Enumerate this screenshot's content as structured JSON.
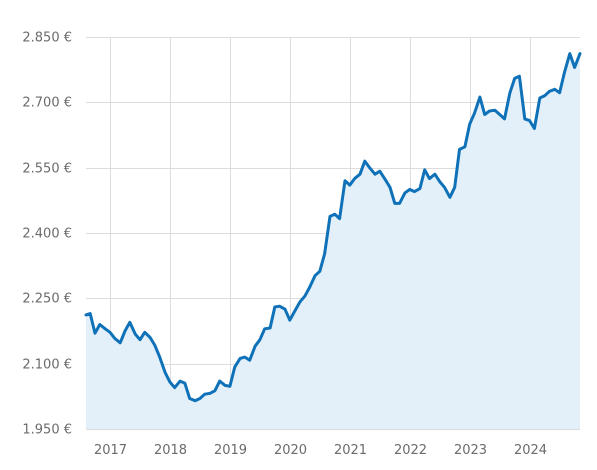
{
  "chart_data": {
    "type": "area",
    "y_ticks": [
      1950,
      2100,
      2250,
      2400,
      2550,
      2700,
      2850
    ],
    "y_tick_labels": [
      "1.950 €",
      "2.100 €",
      "2.250 €",
      "2.400 €",
      "2.550 €",
      "2.700 €",
      "2.850 €"
    ],
    "x_ticks": [
      2017,
      2018,
      2019,
      2020,
      2021,
      2022,
      2023,
      2024
    ],
    "x_tick_labels": [
      "2017",
      "2018",
      "2019",
      "2020",
      "2021",
      "2022",
      "2023",
      "2024"
    ],
    "xlim": [
      2016.6,
      2024.84
    ],
    "ylim": [
      1950,
      2850
    ],
    "grid": true,
    "legend": "none",
    "colors": {
      "line": "#0f72b8",
      "fill": "#e3f0f9",
      "grid": "#dcdcdc",
      "text": "#6b6b6b"
    },
    "series": [
      {
        "x": [
          2016.6,
          2016.67,
          2016.75,
          2016.83,
          2016.92,
          2017.0,
          2017.08,
          2017.17,
          2017.25,
          2017.33,
          2017.42,
          2017.5,
          2017.58,
          2017.67,
          2017.75,
          2017.83,
          2017.92,
          2018.0,
          2018.08,
          2018.17,
          2018.25,
          2018.33,
          2018.42,
          2018.5,
          2018.58,
          2018.67,
          2018.75,
          2018.83,
          2018.92,
          2019.0,
          2019.08,
          2019.17,
          2019.25,
          2019.33,
          2019.42,
          2019.5,
          2019.58,
          2019.67,
          2019.75,
          2019.83,
          2019.92,
          2020.0,
          2020.08,
          2020.17,
          2020.25,
          2020.33,
          2020.42,
          2020.5,
          2020.58,
          2020.67,
          2020.75,
          2020.83,
          2020.92,
          2021.0,
          2021.08,
          2021.17,
          2021.25,
          2021.33,
          2021.42,
          2021.5,
          2021.58,
          2021.67,
          2021.75,
          2021.83,
          2021.92,
          2022.0,
          2022.08,
          2022.17,
          2022.25,
          2022.33,
          2022.42,
          2022.5,
          2022.58,
          2022.67,
          2022.75,
          2022.83,
          2022.92,
          2023.0,
          2023.08,
          2023.17,
          2023.25,
          2023.33,
          2023.42,
          2023.5,
          2023.58,
          2023.67,
          2023.75,
          2023.83,
          2023.92,
          2024.0,
          2024.08,
          2024.17,
          2024.25,
          2024.33,
          2024.42,
          2024.5,
          2024.58,
          2024.67,
          2024.75,
          2024.84
        ],
        "values": [
          2212,
          2215,
          2170,
          2190,
          2180,
          2172,
          2158,
          2148,
          2175,
          2195,
          2168,
          2155,
          2172,
          2160,
          2142,
          2115,
          2080,
          2058,
          2045,
          2060,
          2055,
          2020,
          2015,
          2020,
          2030,
          2032,
          2038,
          2060,
          2050,
          2048,
          2092,
          2112,
          2115,
          2108,
          2140,
          2155,
          2180,
          2182,
          2230,
          2232,
          2225,
          2200,
          2220,
          2242,
          2255,
          2275,
          2302,
          2312,
          2352,
          2438,
          2443,
          2433,
          2520,
          2510,
          2525,
          2535,
          2565,
          2550,
          2535,
          2542,
          2525,
          2505,
          2468,
          2468,
          2492,
          2500,
          2495,
          2502,
          2545,
          2525,
          2535,
          2518,
          2505,
          2482,
          2505,
          2592,
          2598,
          2650,
          2675,
          2712,
          2672,
          2680,
          2682,
          2672,
          2662,
          2722,
          2755,
          2760,
          2662,
          2658,
          2640,
          2710,
          2715,
          2725,
          2730,
          2722,
          2768,
          2812,
          2780,
          2812
        ]
      }
    ]
  }
}
